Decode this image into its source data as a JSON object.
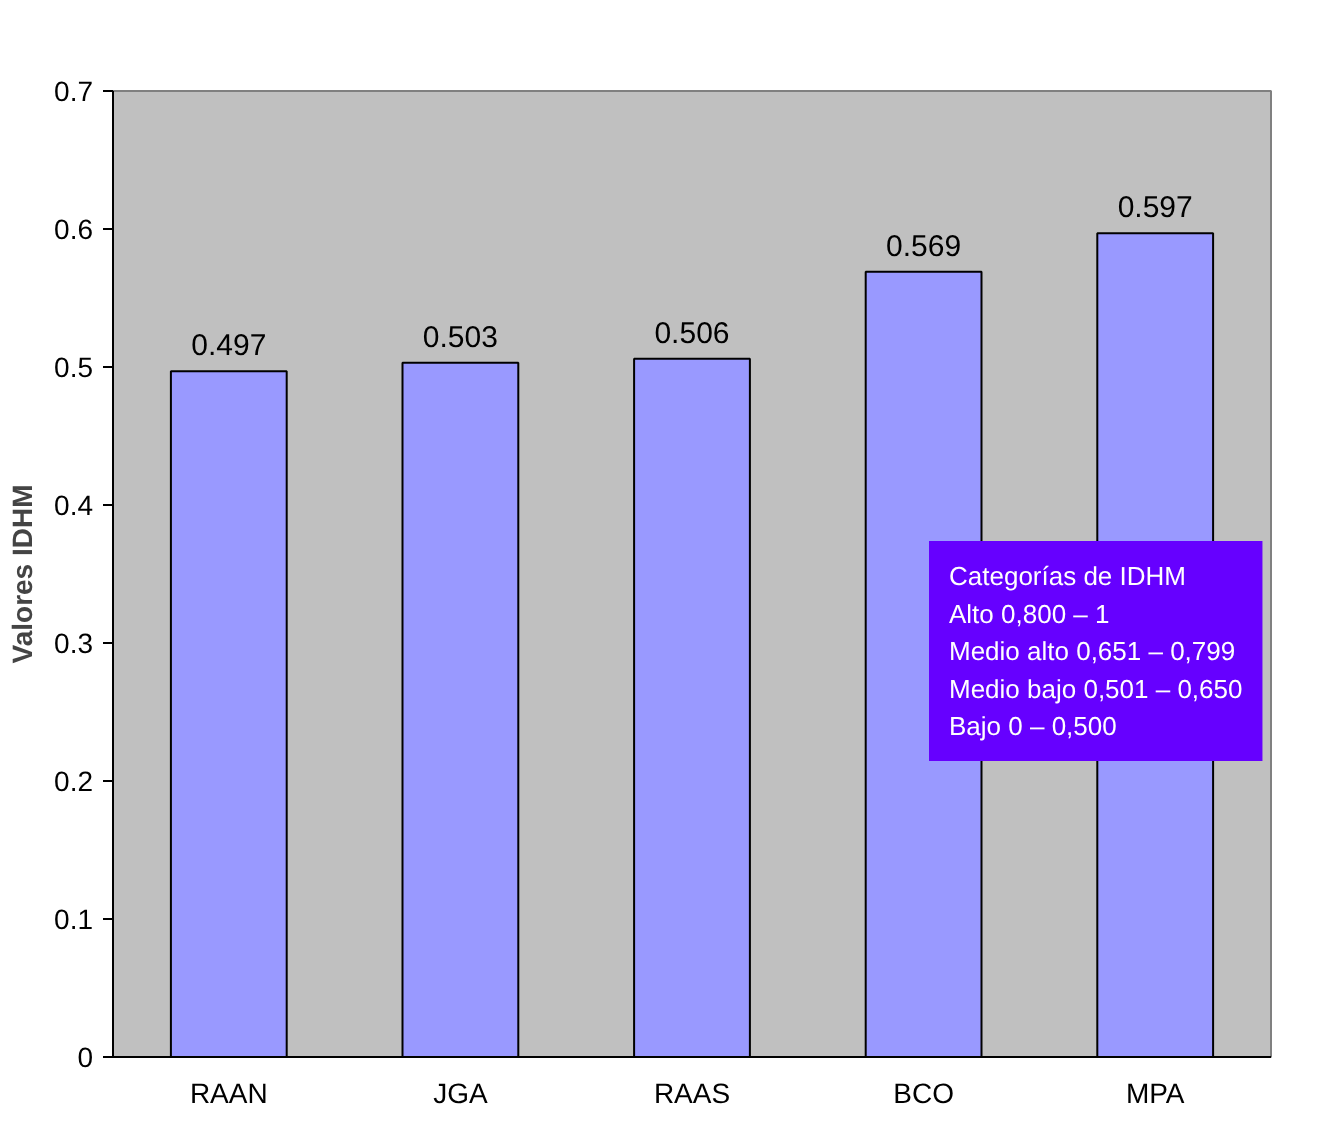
{
  "chart_data": {
    "type": "bar",
    "ylabel": "Valores IDHM",
    "categories": [
      "RAAN",
      "JGA",
      "RAAS",
      "BCO",
      "MPA"
    ],
    "values": [
      0.497,
      0.503,
      0.506,
      0.569,
      0.597
    ],
    "color": "#9999ff",
    "ylim": [
      0,
      0.7
    ],
    "yticks": [
      0,
      0.1,
      0.2,
      0.3,
      0.4,
      0.5,
      0.6,
      0.7
    ],
    "grid": false,
    "data_labels": true,
    "annotations": [
      "Categorías de IDHM",
      "Alto 0,800 – 1",
      "Medio alto 0,651 – 0,799",
      "Medio bajo 0,501 – 0,650",
      "Bajo 0 – 0,500"
    ]
  }
}
